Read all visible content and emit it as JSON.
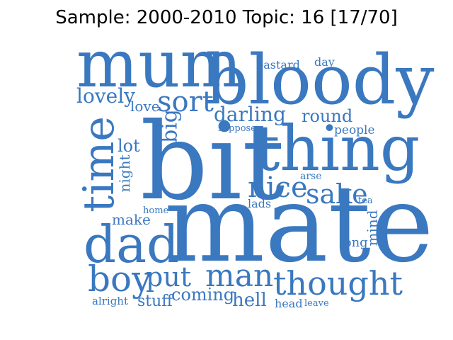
{
  "title": "Sample: 2000-2010 Topic: 16 [17/70]",
  "word_color": "#3a78c0",
  "words": [
    {
      "text": "mum",
      "size": 92,
      "vertical": false
    },
    {
      "text": "bloody",
      "size": 96,
      "vertical": false
    },
    {
      "text": "bastard",
      "size": 16,
      "vertical": false
    },
    {
      "text": "day",
      "size": 16,
      "vertical": false
    },
    {
      "text": "lovely",
      "size": 28,
      "vertical": false
    },
    {
      "text": "love",
      "size": 20,
      "vertical": false
    },
    {
      "text": "sort",
      "size": 40,
      "vertical": false
    },
    {
      "text": "big",
      "size": 30,
      "vertical": true
    },
    {
      "text": "darling",
      "size": 28,
      "vertical": false
    },
    {
      "text": "round",
      "size": 24,
      "vertical": false
    },
    {
      "text": "suppose",
      "size": 13,
      "vertical": false
    },
    {
      "text": "people",
      "size": 17,
      "vertical": false
    },
    {
      "text": "time",
      "size": 60,
      "vertical": true
    },
    {
      "text": "lot",
      "size": 24,
      "vertical": false
    },
    {
      "text": "night",
      "size": 20,
      "vertical": true
    },
    {
      "text": "bit",
      "size": 150,
      "vertical": false
    },
    {
      "text": "thing",
      "size": 88,
      "vertical": false
    },
    {
      "text": "arse",
      "size": 14,
      "vertical": false
    },
    {
      "text": "nice",
      "size": 40,
      "vertical": false
    },
    {
      "text": "sake",
      "size": 38,
      "vertical": false
    },
    {
      "text": "tea",
      "size": 13,
      "vertical": false
    },
    {
      "text": "lads",
      "size": 16,
      "vertical": false
    },
    {
      "text": "home",
      "size": 13,
      "vertical": false
    },
    {
      "text": "make",
      "size": 20,
      "vertical": false
    },
    {
      "text": "mind",
      "size": 20,
      "vertical": true
    },
    {
      "text": "dad",
      "size": 72,
      "vertical": false
    },
    {
      "text": "mate",
      "size": 150,
      "vertical": false
    },
    {
      "text": "long",
      "size": 18,
      "vertical": false
    },
    {
      "text": "boy",
      "size": 50,
      "vertical": false
    },
    {
      "text": "put",
      "size": 38,
      "vertical": false
    },
    {
      "text": "man",
      "size": 44,
      "vertical": false
    },
    {
      "text": "thought",
      "size": 46,
      "vertical": false
    },
    {
      "text": "alright",
      "size": 15,
      "vertical": false
    },
    {
      "text": "stuff",
      "size": 22,
      "vertical": false
    },
    {
      "text": "coming",
      "size": 24,
      "vertical": false
    },
    {
      "text": "hell",
      "size": 26,
      "vertical": false
    },
    {
      "text": "head",
      "size": 16,
      "vertical": false
    },
    {
      "text": "leave",
      "size": 13,
      "vertical": false
    }
  ]
}
